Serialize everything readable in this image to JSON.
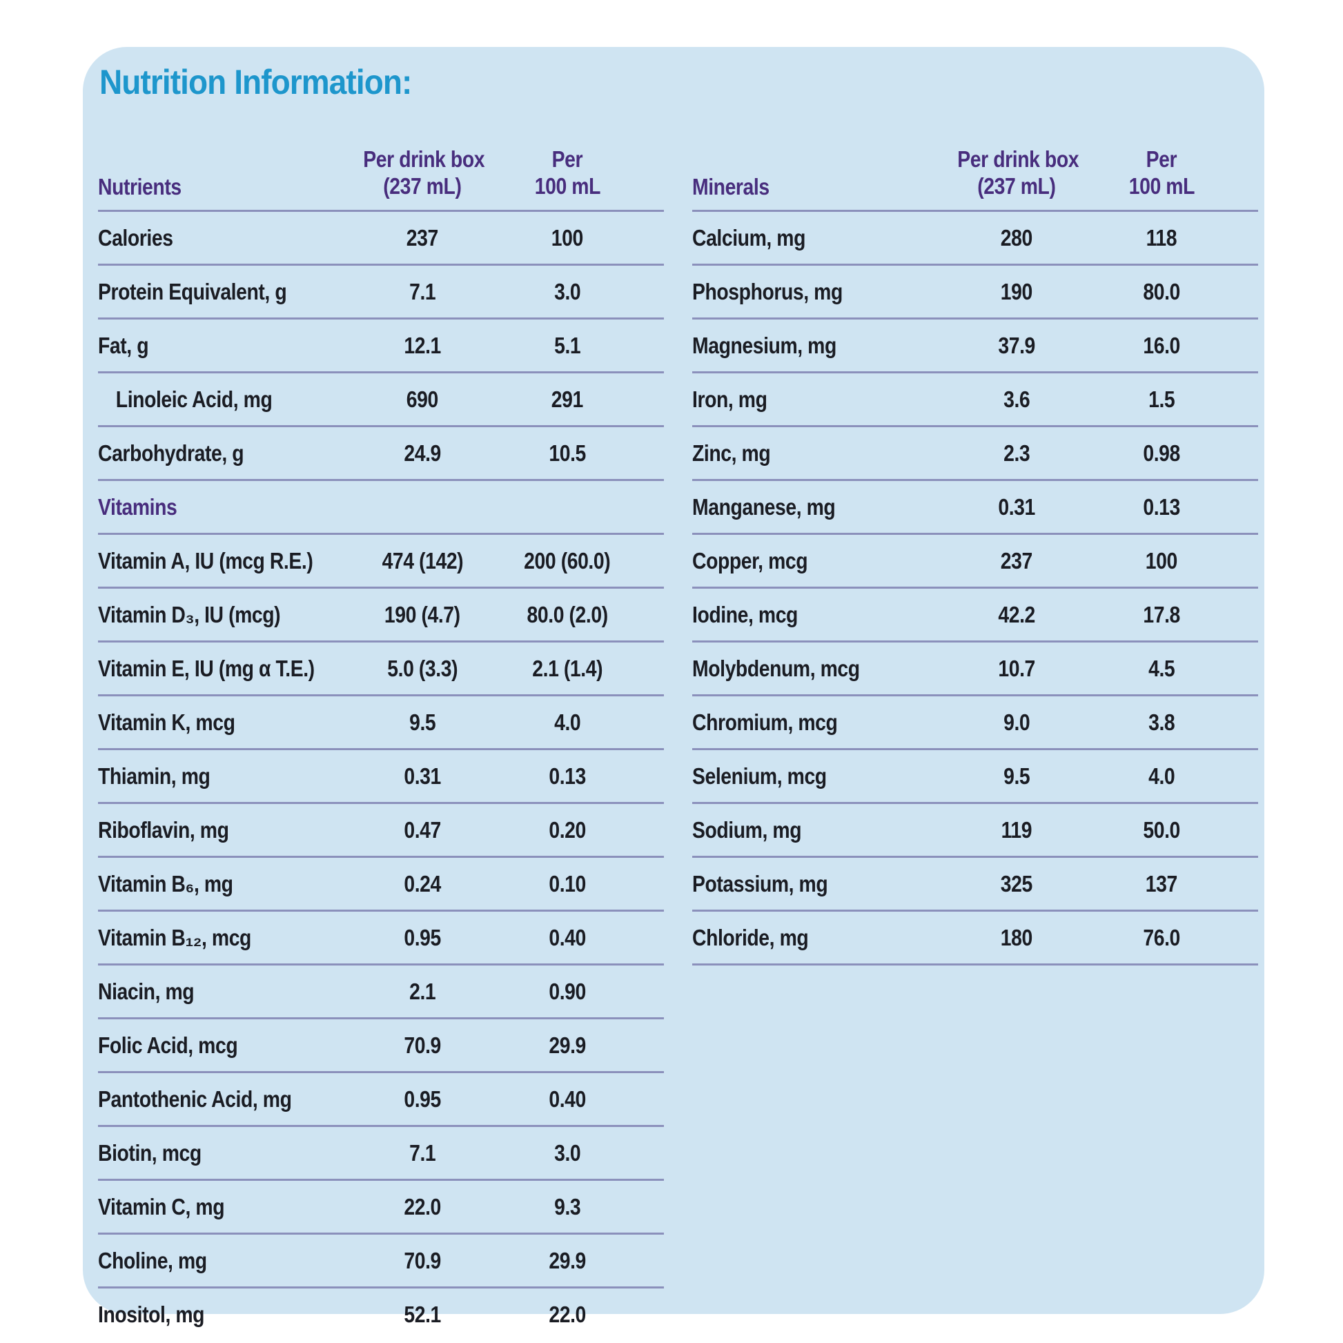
{
  "title": "Nutrition Information:",
  "colors": {
    "title_blue": "#1d96cc",
    "header_purple": "#482d7d",
    "separator_line": "#8b90bb",
    "card_background": "#cfe4f2",
    "body_text": "#1a1c23"
  },
  "columns": {
    "per_box_l1": "Per drink box",
    "per_box_l2": "(237 mL)",
    "per_100_l1": "Per",
    "per_100_l2": "100 mL"
  },
  "left_table": {
    "group_header": "Nutrients",
    "rows": [
      {
        "label": "Calories",
        "per_box": "237",
        "per_100": "100"
      },
      {
        "label": "Protein Equivalent, g",
        "per_box": "7.1",
        "per_100": "3.0"
      },
      {
        "label": "Fat, g",
        "per_box": "12.1",
        "per_100": "5.1"
      },
      {
        "label": "Linoleic Acid, mg",
        "per_box": "690",
        "per_100": "291"
      },
      {
        "label": "Carbohydrate, g",
        "per_box": "24.9",
        "per_100": "10.5"
      }
    ],
    "section_label": "Vitamins",
    "vitamin_rows": [
      {
        "label": "Vitamin A, IU (mcg R.E.)",
        "per_box": "474 (142)",
        "per_100": "200 (60.0)"
      },
      {
        "label": "Vitamin D₃, IU (mcg)",
        "per_box": "190 (4.7)",
        "per_100": "80.0 (2.0)"
      },
      {
        "label": "Vitamin E, IU (mg α T.E.)",
        "per_box": "5.0 (3.3)",
        "per_100": "2.1 (1.4)"
      },
      {
        "label": "Vitamin K, mcg",
        "per_box": "9.5",
        "per_100": "4.0"
      },
      {
        "label": "Thiamin, mg",
        "per_box": "0.31",
        "per_100": "0.13"
      },
      {
        "label": "Riboflavin, mg",
        "per_box": "0.47",
        "per_100": "0.20"
      },
      {
        "label": "Vitamin B₆, mg",
        "per_box": "0.24",
        "per_100": "0.10"
      },
      {
        "label": "Vitamin B₁₂, mcg",
        "per_box": "0.95",
        "per_100": "0.40"
      },
      {
        "label": "Niacin, mg",
        "per_box": "2.1",
        "per_100": "0.90"
      },
      {
        "label": "Folic Acid, mcg",
        "per_box": "70.9",
        "per_100": "29.9"
      },
      {
        "label": "Pantothenic Acid, mg",
        "per_box": "0.95",
        "per_100": "0.40"
      },
      {
        "label": "Biotin, mcg",
        "per_box": "7.1",
        "per_100": "3.0"
      },
      {
        "label": "Vitamin C, mg",
        "per_box": "22.0",
        "per_100": "9.3"
      },
      {
        "label": "Choline, mg",
        "per_box": "70.9",
        "per_100": "29.9"
      },
      {
        "label": "Inositol, mg",
        "per_box": "52.1",
        "per_100": "22.0"
      }
    ]
  },
  "right_table": {
    "group_header": "Minerals",
    "rows": [
      {
        "label": "Calcium, mg",
        "per_box": "280",
        "per_100": "118"
      },
      {
        "label": "Phosphorus, mg",
        "per_box": "190",
        "per_100": "80.0"
      },
      {
        "label": "Magnesium, mg",
        "per_box": "37.9",
        "per_100": "16.0"
      },
      {
        "label": "Iron, mg",
        "per_box": "3.6",
        "per_100": "1.5"
      },
      {
        "label": "Zinc, mg",
        "per_box": "2.3",
        "per_100": "0.98"
      },
      {
        "label": "Manganese, mg",
        "per_box": "0.31",
        "per_100": "0.13"
      },
      {
        "label": "Copper, mcg",
        "per_box": "237",
        "per_100": "100"
      },
      {
        "label": "Iodine, mcg",
        "per_box": "42.2",
        "per_100": "17.8"
      },
      {
        "label": "Molybdenum, mcg",
        "per_box": "10.7",
        "per_100": "4.5"
      },
      {
        "label": "Chromium, mcg",
        "per_box": "9.0",
        "per_100": "3.8"
      },
      {
        "label": "Selenium, mcg",
        "per_box": "9.5",
        "per_100": "4.0"
      },
      {
        "label": "Sodium, mg",
        "per_box": "119",
        "per_100": "50.0"
      },
      {
        "label": "Potassium, mg",
        "per_box": "325",
        "per_100": "137"
      },
      {
        "label": "Chloride, mg",
        "per_box": "180",
        "per_100": "76.0"
      }
    ]
  }
}
